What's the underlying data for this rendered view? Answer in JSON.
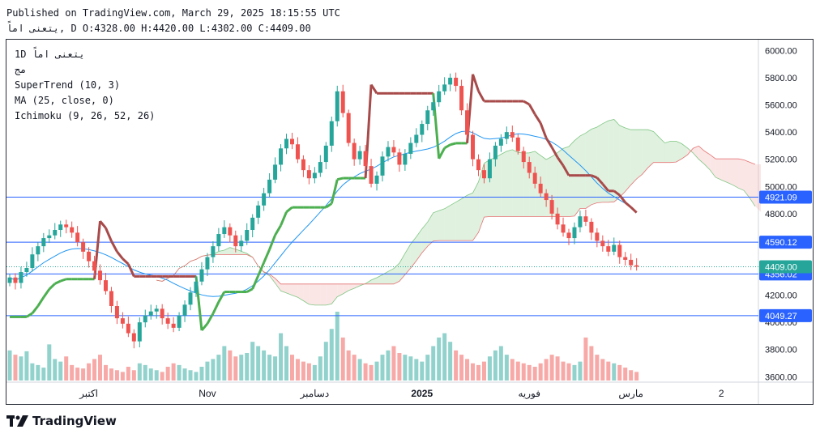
{
  "header": {
    "published": "Published on TradingView.com, March 29, 2025 18:15:55 UTC",
    "ohlc": "يتعنى اماً, D O:4328.00 H:4420.00 L:4302.00 C:4409.00"
  },
  "legend": {
    "line1": "1D يتعنى اماً",
    "line2": "مج",
    "supertrend": "SuperTrend (10, 3)",
    "ma": "MA (25, close, 0)",
    "ichimoku": "Ichimoku (9, 26, 52, 26)"
  },
  "brand": {
    "name": "TradingView",
    "icon": "tradingview-logo-icon"
  },
  "colors": {
    "up": "#26a69a",
    "down": "#ef5350",
    "supertrend_up": "#4caf50",
    "supertrend_down": "#a84a4a",
    "ma": "#2196f3",
    "cloud_bull": "#a5d6a7",
    "cloud_bear": "#f4b6b6",
    "level_line": "#2962ff",
    "label_bg": "#2962ff"
  },
  "chart_data": {
    "type": "candlestick",
    "symbol": "يتعنى اماً",
    "interval": "1D",
    "y_ticks": [
      6000,
      5800,
      5600,
      5400,
      5200,
      5000,
      4800,
      4600,
      4400,
      4200,
      4000,
      3800,
      3600
    ],
    "y_tick_labels": [
      "6000.00",
      "5800.00",
      "5600.00",
      "5400.00",
      "5200.00",
      "5000.00",
      "4800.00",
      "4600.00",
      "4400.00",
      "4200.00",
      "4000.00",
      "3800.00",
      "3600.00"
    ],
    "ylim": [
      3560,
      6080
    ],
    "x_tick_labels": [
      {
        "label": "اكتبر",
        "day": 14
      },
      {
        "label": "Nov",
        "day": 35
      },
      {
        "label": "دسامبر",
        "day": 54
      },
      {
        "label": "2025",
        "day": 73
      },
      {
        "label": "فوريه",
        "day": 92
      },
      {
        "label": "مارس",
        "day": 110
      },
      {
        "label": "2",
        "day": 126
      }
    ],
    "x_range_days": [
      0,
      132
    ],
    "horizontal_levels": [
      {
        "value": 4921.09,
        "label": "4921.09"
      },
      {
        "value": 4590.12,
        "label": "4590.12"
      },
      {
        "value": 4356.02,
        "label": "4356.02"
      },
      {
        "value": 4049.27,
        "label": "4049.27"
      }
    ],
    "last_price": {
      "value": 4409.0,
      "label": "4409.00"
    },
    "closes": [
      4330,
      4290,
      4370,
      4400,
      4500,
      4560,
      4620,
      4640,
      4680,
      4720,
      4700,
      4660,
      4590,
      4520,
      4450,
      4380,
      4310,
      4230,
      4120,
      4030,
      3990,
      3920,
      3860,
      4000,
      4050,
      4080,
      4100,
      4030,
      3990,
      3960,
      4050,
      4130,
      4220,
      4300,
      4390,
      4480,
      4560,
      4650,
      4700,
      4640,
      4560,
      4600,
      4680,
      4770,
      4860,
      4950,
      5050,
      5160,
      5280,
      5350,
      5310,
      5200,
      5120,
      5060,
      5100,
      5180,
      5300,
      5480,
      5700,
      5540,
      5320,
      5200,
      5260,
      5150,
      5020,
      5080,
      5220,
      5290,
      5250,
      5160,
      5240,
      5320,
      5380,
      5460,
      5560,
      5620,
      5700,
      5750,
      5800,
      5740,
      5560,
      5380,
      5200,
      5120,
      5060,
      5200,
      5300,
      5350,
      5400,
      5360,
      5260,
      5180,
      5100,
      5020,
      4950,
      4900,
      4800,
      4720,
      4660,
      4620,
      4700,
      4780,
      4740,
      4660,
      4600,
      4560,
      4520,
      4570,
      4480,
      4460,
      4420,
      4409
    ],
    "volumes": [
      35,
      30,
      28,
      34,
      20,
      18,
      15,
      42,
      25,
      22,
      28,
      18,
      15,
      14,
      20,
      25,
      30,
      18,
      14,
      12,
      10,
      16,
      12,
      20,
      18,
      14,
      12,
      10,
      16,
      20,
      18,
      14,
      12,
      10,
      16,
      22,
      25,
      30,
      40,
      35,
      28,
      30,
      32,
      45,
      40,
      35,
      30,
      28,
      55,
      40,
      30,
      25,
      22,
      20,
      18,
      28,
      45,
      60,
      80,
      50,
      35,
      30,
      25,
      20,
      18,
      22,
      30,
      35,
      40,
      32,
      30,
      28,
      25,
      22,
      30,
      40,
      50,
      55,
      45,
      35,
      30,
      25,
      20,
      18,
      22,
      28,
      35,
      40,
      30,
      25,
      22,
      20,
      18,
      16,
      20,
      25,
      30,
      28,
      22,
      20,
      18,
      22,
      50,
      40,
      30,
      25,
      22,
      20,
      18,
      15,
      12,
      10
    ]
  }
}
